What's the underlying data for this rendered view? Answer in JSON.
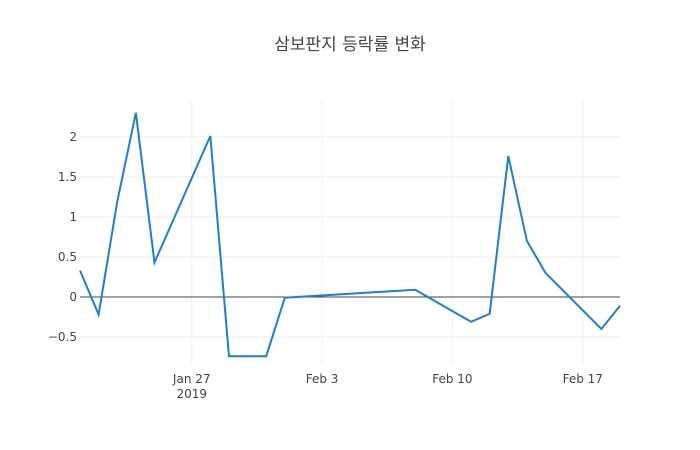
{
  "chart_data": {
    "type": "line",
    "title": "삼보판지 등락률 변화",
    "x": [
      "2019-01-21",
      "2019-01-22",
      "2019-01-23",
      "2019-01-24",
      "2019-01-25",
      "2019-01-28",
      "2019-01-29",
      "2019-01-31",
      "2019-02-01",
      "2019-02-08",
      "2019-02-11",
      "2019-02-12",
      "2019-02-13",
      "2019-02-14",
      "2019-02-15",
      "2019-02-18",
      "2019-02-19"
    ],
    "series": [
      {
        "color": "#1a7fd9",
        "values": [
          0.33,
          -0.22,
          1.19,
          2.3,
          0.43,
          2.01,
          -0.74,
          -0.74,
          -0.01,
          0.09,
          -0.31,
          -0.21,
          1.76,
          0.7,
          0.3,
          -0.4,
          -0.11
        ]
      }
    ],
    "xlim": [
      "2019-01-21",
      "2019-02-19"
    ],
    "xticks": [
      {
        "value": "2019-01-27",
        "label": "Jan 27\n2019"
      },
      {
        "value": "2019-02-03",
        "label": "Feb 3"
      },
      {
        "value": "2019-02-10",
        "label": "Feb 10"
      },
      {
        "value": "2019-02-17",
        "label": "Feb 17"
      }
    ],
    "ylim": [
      -0.85,
      2.46
    ],
    "yticks": [
      {
        "value": -0.5,
        "label": "−0.5"
      },
      0,
      0.5,
      1,
      1.5,
      2
    ],
    "grid": true
  }
}
